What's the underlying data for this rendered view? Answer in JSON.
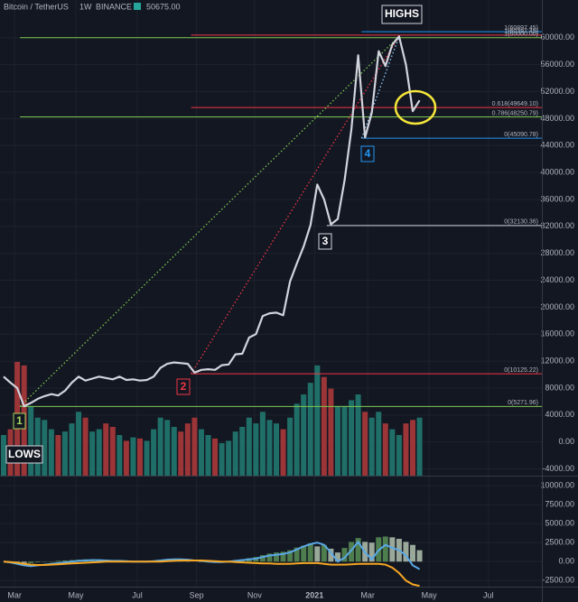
{
  "chart_data": {
    "type": "line",
    "header": {
      "symbol": "Bitcoin / TetherUS",
      "interval": "1W",
      "exchange": "BINANCE",
      "last": {
        "value": 50675,
        "label": "50675.00"
      }
    },
    "annotations": {
      "highs": "HIGHS",
      "lows": "LOWS",
      "m1": "1",
      "m2": "2",
      "m3": "3",
      "m4": "4"
    },
    "x": [
      0,
      1,
      2,
      3,
      4,
      5,
      6,
      7,
      8,
      9,
      10,
      11,
      12,
      13,
      14,
      15,
      16,
      17,
      18,
      19,
      20,
      21,
      22,
      23,
      24,
      25,
      26,
      27,
      28,
      29,
      30,
      31,
      32,
      33,
      34,
      35,
      36,
      37,
      38,
      39,
      40,
      41,
      42,
      43,
      44,
      45,
      46,
      47,
      48,
      49,
      50,
      51,
      52,
      53,
      54,
      55,
      56,
      57,
      58,
      59,
      60,
      61
    ],
    "xlim": [
      -0.53,
      78.94
    ],
    "xticks": [
      {
        "value": 1.6,
        "label": "Mar"
      },
      {
        "value": 10.6,
        "label": "May"
      },
      {
        "value": 19.6,
        "label": "Jul"
      },
      {
        "value": 28.3,
        "label": "Sep"
      },
      {
        "value": 36.8,
        "label": "Nov"
      },
      {
        "value": 45.6,
        "label": "2021"
      },
      {
        "value": 53.4,
        "label": "Mar"
      },
      {
        "value": 62.4,
        "label": "May"
      },
      {
        "value": 71.1,
        "label": "Jul"
      }
    ],
    "ylim": [
      -5000,
      65600
    ],
    "yticks": [
      {
        "value": -4000,
        "label": "-4000.00"
      },
      {
        "value": 0,
        "label": "0.00"
      },
      {
        "value": 4000,
        "label": "4000.00"
      },
      {
        "value": 8000,
        "label": "8000.00"
      },
      {
        "value": 12000,
        "label": "12000.00"
      },
      {
        "value": 16000,
        "label": "16000.00"
      },
      {
        "value": 20000,
        "label": "20000.00"
      },
      {
        "value": 24000,
        "label": "24000.00"
      },
      {
        "value": 28000,
        "label": "28000.00"
      },
      {
        "value": 32000,
        "label": "32000.00"
      },
      {
        "value": 36000,
        "label": "36000.00"
      },
      {
        "value": 40000,
        "label": "40000.00"
      },
      {
        "value": 44000,
        "label": "44000.00"
      },
      {
        "value": 48000,
        "label": "48000.00"
      },
      {
        "value": 52000,
        "label": "52000.00"
      },
      {
        "value": 56000,
        "label": "56000.00"
      },
      {
        "value": 60000,
        "label": "60000.00"
      }
    ],
    "grid": true,
    "price": {
      "color": "#d1d4dc",
      "values": [
        9700,
        8800,
        8000,
        5300,
        5800,
        6400,
        6800,
        7100,
        6900,
        7600,
        8800,
        9700,
        9100,
        9400,
        9700,
        9500,
        9300,
        9700,
        9200,
        9300,
        9100,
        9200,
        9700,
        11000,
        11600,
        11800,
        11700,
        11600,
        10300,
        10700,
        10800,
        10700,
        11400,
        11500,
        13000,
        13100,
        15500,
        16000,
        18700,
        19100,
        19200,
        18800,
        23800,
        26500,
        29000,
        32200,
        38200,
        36000,
        32300,
        33100,
        38800,
        46400,
        57400,
        45200,
        48900,
        58000,
        55800,
        59000,
        60200,
        56000,
        49100,
        50700
      ]
    },
    "volume": {
      "up_color": "#1f6f68",
      "down_color": "#9b3537",
      "values": [
        35,
        40,
        98,
        95,
        60,
        50,
        48,
        40,
        35,
        38,
        45,
        55,
        50,
        38,
        40,
        45,
        42,
        35,
        30,
        33,
        32,
        30,
        40,
        50,
        48,
        42,
        38,
        45,
        50,
        40,
        35,
        32,
        28,
        30,
        38,
        42,
        50,
        45,
        55,
        48,
        45,
        40,
        50,
        62,
        70,
        80,
        95,
        85,
        75,
        60,
        60,
        65,
        70,
        55,
        50,
        55,
        45,
        40,
        35,
        45,
        48,
        50
      ]
    },
    "volume_lim": [
      0,
      105
    ],
    "fib_levels": [
      {
        "value": 60897.45,
        "label": "1(60897.45)",
        "color": "#2196f3",
        "from": 52.5
      },
      {
        "value": 60397.45,
        "label": "1(60397.45)",
        "color": "#f23645",
        "from": 27.5
      },
      {
        "value": 60000,
        "label": "1(60000.00)",
        "color": "#7ec850",
        "from": 2.4
      },
      {
        "value": 49649.1,
        "label": "0.618(49649.10)",
        "color": "#f23645",
        "from": 27.5
      },
      {
        "value": 48250.79,
        "label": "0.786(48250.79)",
        "color": "#7ec850",
        "from": 2.4
      },
      {
        "value": 45090.78,
        "label": "0(45090.78)",
        "color": "#2196f3",
        "from": 52.5
      },
      {
        "value": 32130.36,
        "label": "0(32130.36)",
        "color": "#d1d4dc",
        "from": 47.4
      },
      {
        "value": 10125.22,
        "label": "0(10125.22)",
        "color": "#f23645",
        "from": 27.5
      },
      {
        "value": 5271.96,
        "label": "0(5271.96)",
        "color": "#7ec850",
        "from": 2.4
      }
    ],
    "trend_lines": [
      {
        "from": [
          2.4,
          5271.96
        ],
        "to": [
          58,
          60200
        ],
        "color": "#7ec850"
      },
      {
        "from": [
          27.5,
          10125.22
        ],
        "to": [
          58,
          60200
        ],
        "color": "#f23645"
      },
      {
        "from": [
          52.5,
          45090.78
        ],
        "to": [
          58,
          60200
        ],
        "color": "#90caf9"
      }
    ],
    "indicator": {
      "ylim": [
        -3300,
        11200
      ],
      "yticks": [
        {
          "value": -2500,
          "label": "-2500.00"
        },
        {
          "value": 0,
          "label": "0.00"
        },
        {
          "value": 2500,
          "label": "2500.00"
        },
        {
          "value": 5000,
          "label": "5000.00"
        },
        {
          "value": 7500,
          "label": "7500.00"
        },
        {
          "value": 10000,
          "label": "10000.00"
        }
      ],
      "hist_rise_color": "#4e7d4e",
      "hist_fall_color": "#9aa89a",
      "histogram": [
        0,
        -100,
        -150,
        -200,
        -200,
        -100,
        -50,
        -50,
        100,
        150,
        200,
        250,
        300,
        300,
        250,
        200,
        150,
        100,
        50,
        0,
        0,
        0,
        50,
        100,
        150,
        200,
        150,
        100,
        0,
        -50,
        -100,
        -100,
        -50,
        50,
        150,
        300,
        450,
        600,
        850,
        1050,
        1200,
        1300,
        1500,
        1850,
        2100,
        2400,
        2000,
        2200,
        1700,
        1200,
        1800,
        2600,
        3100,
        2600,
        2500,
        3200,
        3300,
        3200,
        3000,
        2600,
        2200,
        1500
      ],
      "lines": [
        {
          "color": "#5aa9e6",
          "values": [
            0,
            -100,
            -300,
            -500,
            -600,
            -500,
            -400,
            -300,
            -200,
            -100,
            0,
            100,
            150,
            200,
            200,
            150,
            100,
            100,
            50,
            0,
            0,
            0,
            50,
            150,
            250,
            300,
            300,
            250,
            150,
            100,
            0,
            -50,
            -50,
            0,
            100,
            200,
            300,
            400,
            600,
            800,
            900,
            1000,
            1200,
            1600,
            2000,
            2300,
            2500,
            2200,
            1200,
            0,
            500,
            1500,
            2600,
            1200,
            300,
            1500,
            2200,
            1800,
            1500,
            800,
            -500,
            -1000
          ]
        },
        {
          "color": "#f5a623",
          "values": [
            0,
            -50,
            -150,
            -300,
            -400,
            -450,
            -450,
            -400,
            -350,
            -300,
            -250,
            -200,
            -150,
            -100,
            -50,
            0,
            0,
            0,
            0,
            0,
            0,
            0,
            0,
            0,
            50,
            100,
            150,
            150,
            150,
            150,
            100,
            50,
            0,
            0,
            -50,
            -100,
            -150,
            -200,
            -250,
            -250,
            -300,
            -300,
            -300,
            -250,
            -200,
            -200,
            -200,
            -300,
            -400,
            -400,
            -400,
            -350,
            -300,
            -300,
            -300,
            -300,
            -400,
            -800,
            -1500,
            -2500,
            -3000,
            -3200
          ]
        }
      ]
    }
  }
}
